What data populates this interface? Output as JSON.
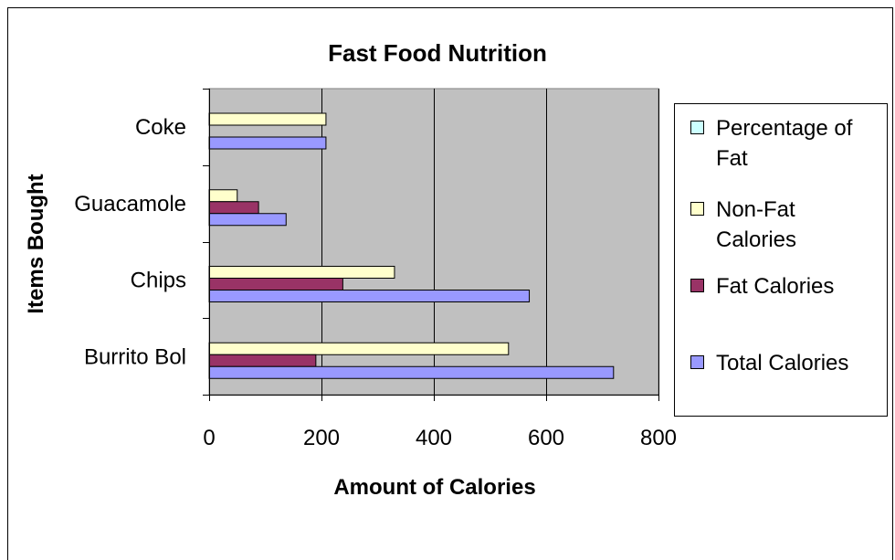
{
  "chart_data": {
    "type": "bar",
    "orientation": "horizontal",
    "title": "Fast Food Nutrition",
    "xlabel": "Amount of Calories",
    "ylabel": "Items Bought",
    "categories": [
      "Burrito Bol",
      "Chips",
      "Guacamole",
      "Coke"
    ],
    "xlim": [
      0,
      800
    ],
    "x_ticks": [
      0,
      200,
      400,
      600,
      800
    ],
    "grid": "vertical",
    "plot_background": "#c0c0c0",
    "legend_position": "right",
    "legend": [
      {
        "label_lines": [
          "Percentage of",
          "Fat"
        ],
        "color": "#ccffff"
      },
      {
        "label_lines": [
          "Non-Fat",
          "Calories"
        ],
        "color": "#ffffcc"
      },
      {
        "label_lines": [
          "Fat Calories"
        ],
        "color": "#993366"
      },
      {
        "label_lines": [
          "Total Calories"
        ],
        "color": "#9999ff"
      }
    ],
    "series": [
      {
        "name": "Total Calories",
        "color": "#9999ff",
        "values": [
          720,
          570,
          137,
          208
        ]
      },
      {
        "name": "Fat Calories",
        "color": "#993366",
        "values": [
          190,
          238,
          88,
          0
        ]
      },
      {
        "name": "Non-Fat Calories",
        "color": "#ffffcc",
        "values": [
          533,
          330,
          50,
          208
        ]
      },
      {
        "name": "Percentage of Fat",
        "color": "#ccffff",
        "values": [
          0,
          0,
          0,
          0
        ]
      }
    ]
  }
}
